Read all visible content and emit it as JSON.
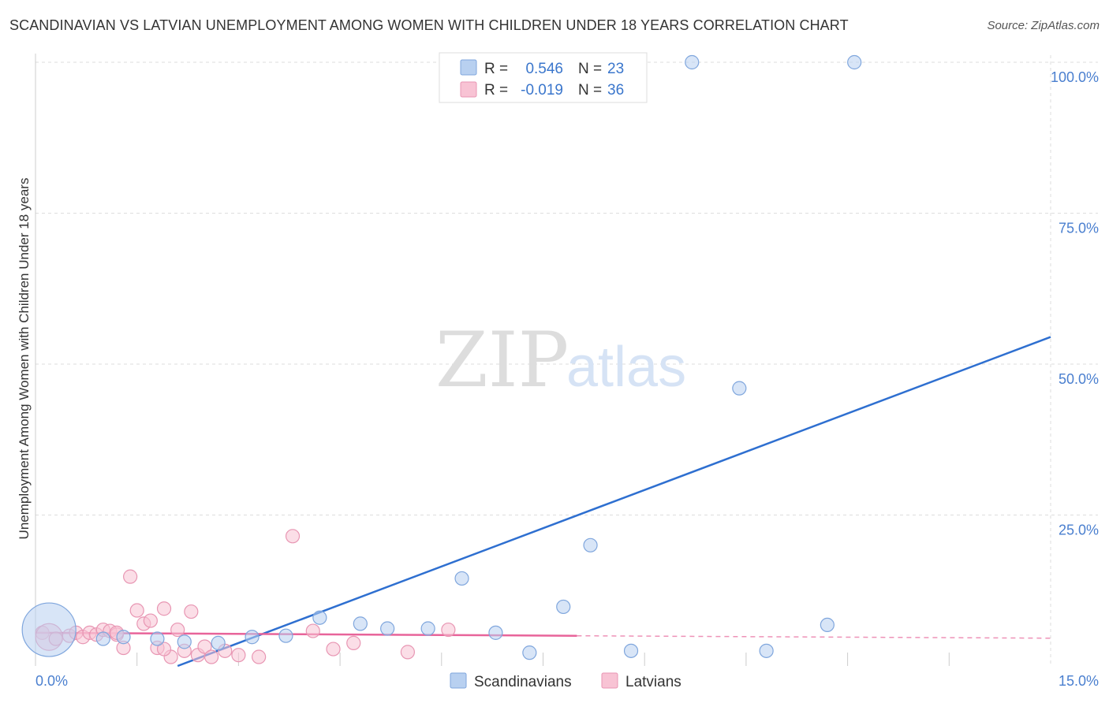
{
  "title": "SCANDINAVIAN VS LATVIAN UNEMPLOYMENT AMONG WOMEN WITH CHILDREN UNDER 18 YEARS CORRELATION CHART",
  "source": "Source: ZipAtlas.com",
  "watermark": {
    "zip": "ZIP",
    "atlas": "atlas"
  },
  "colors": {
    "scandinavian_fill": "#b8d0f0",
    "scandinavian_stroke": "#7fa6dd",
    "scandinavian_line": "#2e6fd0",
    "latvian_fill": "#f8c3d4",
    "latvian_stroke": "#e896b3",
    "latvian_line": "#e8649a",
    "grid": "#dddddd",
    "tick_text": "#4a7fcf"
  },
  "stats": [
    {
      "r_label": "R =",
      "r_value": "0.546",
      "n_label": "N =",
      "n_value": "23"
    },
    {
      "r_label": "R =",
      "r_value": "-0.019",
      "n_label": "N =",
      "n_value": "36"
    }
  ],
  "chart_data": {
    "type": "scatter",
    "title": "SCANDINAVIAN VS LATVIAN UNEMPLOYMENT AMONG WOMEN WITH CHILDREN UNDER 18 YEARS CORRELATION CHART",
    "xlabel": "",
    "ylabel": "Unemployment Among Women with Children Under 18 years",
    "xlim": [
      0,
      15
    ],
    "ylim": [
      0,
      100
    ],
    "x_tick_labels": [
      "0.0%",
      "15.0%"
    ],
    "y_ticks": [
      25,
      50,
      75,
      100
    ],
    "y_tick_labels": [
      "25.0%",
      "50.0%",
      "75.0%",
      "100.0%"
    ],
    "grid": true,
    "legend_position": "bottom",
    "series": [
      {
        "name": "Scandinavians",
        "points": [
          [
            0.2,
            6.0,
            4
          ],
          [
            1.0,
            4.5,
            1
          ],
          [
            1.3,
            4.8,
            1
          ],
          [
            1.8,
            4.5,
            1
          ],
          [
            2.2,
            4.0,
            1
          ],
          [
            2.7,
            3.8,
            1
          ],
          [
            3.2,
            4.8,
            1
          ],
          [
            3.7,
            5.0,
            1
          ],
          [
            4.2,
            8.0,
            1
          ],
          [
            4.8,
            7.0,
            1
          ],
          [
            5.2,
            6.2,
            1
          ],
          [
            5.8,
            6.2,
            1
          ],
          [
            6.3,
            14.5,
            1
          ],
          [
            6.8,
            5.5,
            1
          ],
          [
            7.3,
            2.2,
            1
          ],
          [
            7.8,
            9.8,
            1
          ],
          [
            8.2,
            20.0,
            1
          ],
          [
            8.8,
            2.5,
            1
          ],
          [
            9.7,
            100.0,
            1
          ],
          [
            10.4,
            46.0,
            1
          ],
          [
            10.8,
            2.5,
            1
          ],
          [
            11.7,
            6.8,
            1
          ],
          [
            12.1,
            100.0,
            1
          ]
        ],
        "trend": {
          "x": [
            2.1,
            15.0
          ],
          "y": [
            0.0,
            54.5
          ],
          "style": "solid"
        }
      },
      {
        "name": "Latvians",
        "points": [
          [
            0.1,
            5.5,
            1
          ],
          [
            0.2,
            4.8,
            2
          ],
          [
            0.3,
            4.5,
            1
          ],
          [
            0.5,
            5.0,
            1
          ],
          [
            0.6,
            5.5,
            1
          ],
          [
            0.7,
            4.8,
            1
          ],
          [
            0.8,
            5.5,
            1
          ],
          [
            0.9,
            5.2,
            1
          ],
          [
            1.0,
            6.0,
            1
          ],
          [
            1.1,
            5.8,
            1
          ],
          [
            1.2,
            5.2,
            1
          ],
          [
            1.3,
            3.0,
            1
          ],
          [
            1.4,
            14.8,
            1
          ],
          [
            1.5,
            9.2,
            1
          ],
          [
            1.6,
            7.0,
            1
          ],
          [
            1.7,
            7.5,
            1
          ],
          [
            1.8,
            3.0,
            1
          ],
          [
            1.9,
            9.5,
            1
          ],
          [
            2.0,
            1.5,
            1
          ],
          [
            2.1,
            6.0,
            1
          ],
          [
            2.2,
            2.5,
            1
          ],
          [
            2.3,
            9.0,
            1
          ],
          [
            2.4,
            1.8,
            1
          ],
          [
            2.5,
            3.2,
            1
          ],
          [
            2.6,
            1.5,
            1
          ],
          [
            2.8,
            2.5,
            1
          ],
          [
            3.0,
            1.8,
            1
          ],
          [
            3.3,
            1.5,
            1
          ],
          [
            3.8,
            21.5,
            1
          ],
          [
            4.1,
            5.8,
            1
          ],
          [
            4.4,
            2.8,
            1
          ],
          [
            4.7,
            3.8,
            1
          ],
          [
            5.5,
            2.3,
            1
          ],
          [
            6.1,
            6.0,
            1
          ],
          [
            1.9,
            2.8,
            1
          ],
          [
            1.2,
            5.5,
            1
          ]
        ],
        "trend": {
          "x": [
            0.0,
            8.0
          ],
          "y": [
            5.5,
            5.0
          ],
          "style": "solid",
          "extension": {
            "x": [
              8.0,
              15.0
            ],
            "y": [
              5.0,
              4.6
            ],
            "style": "dashed"
          }
        }
      }
    ]
  }
}
